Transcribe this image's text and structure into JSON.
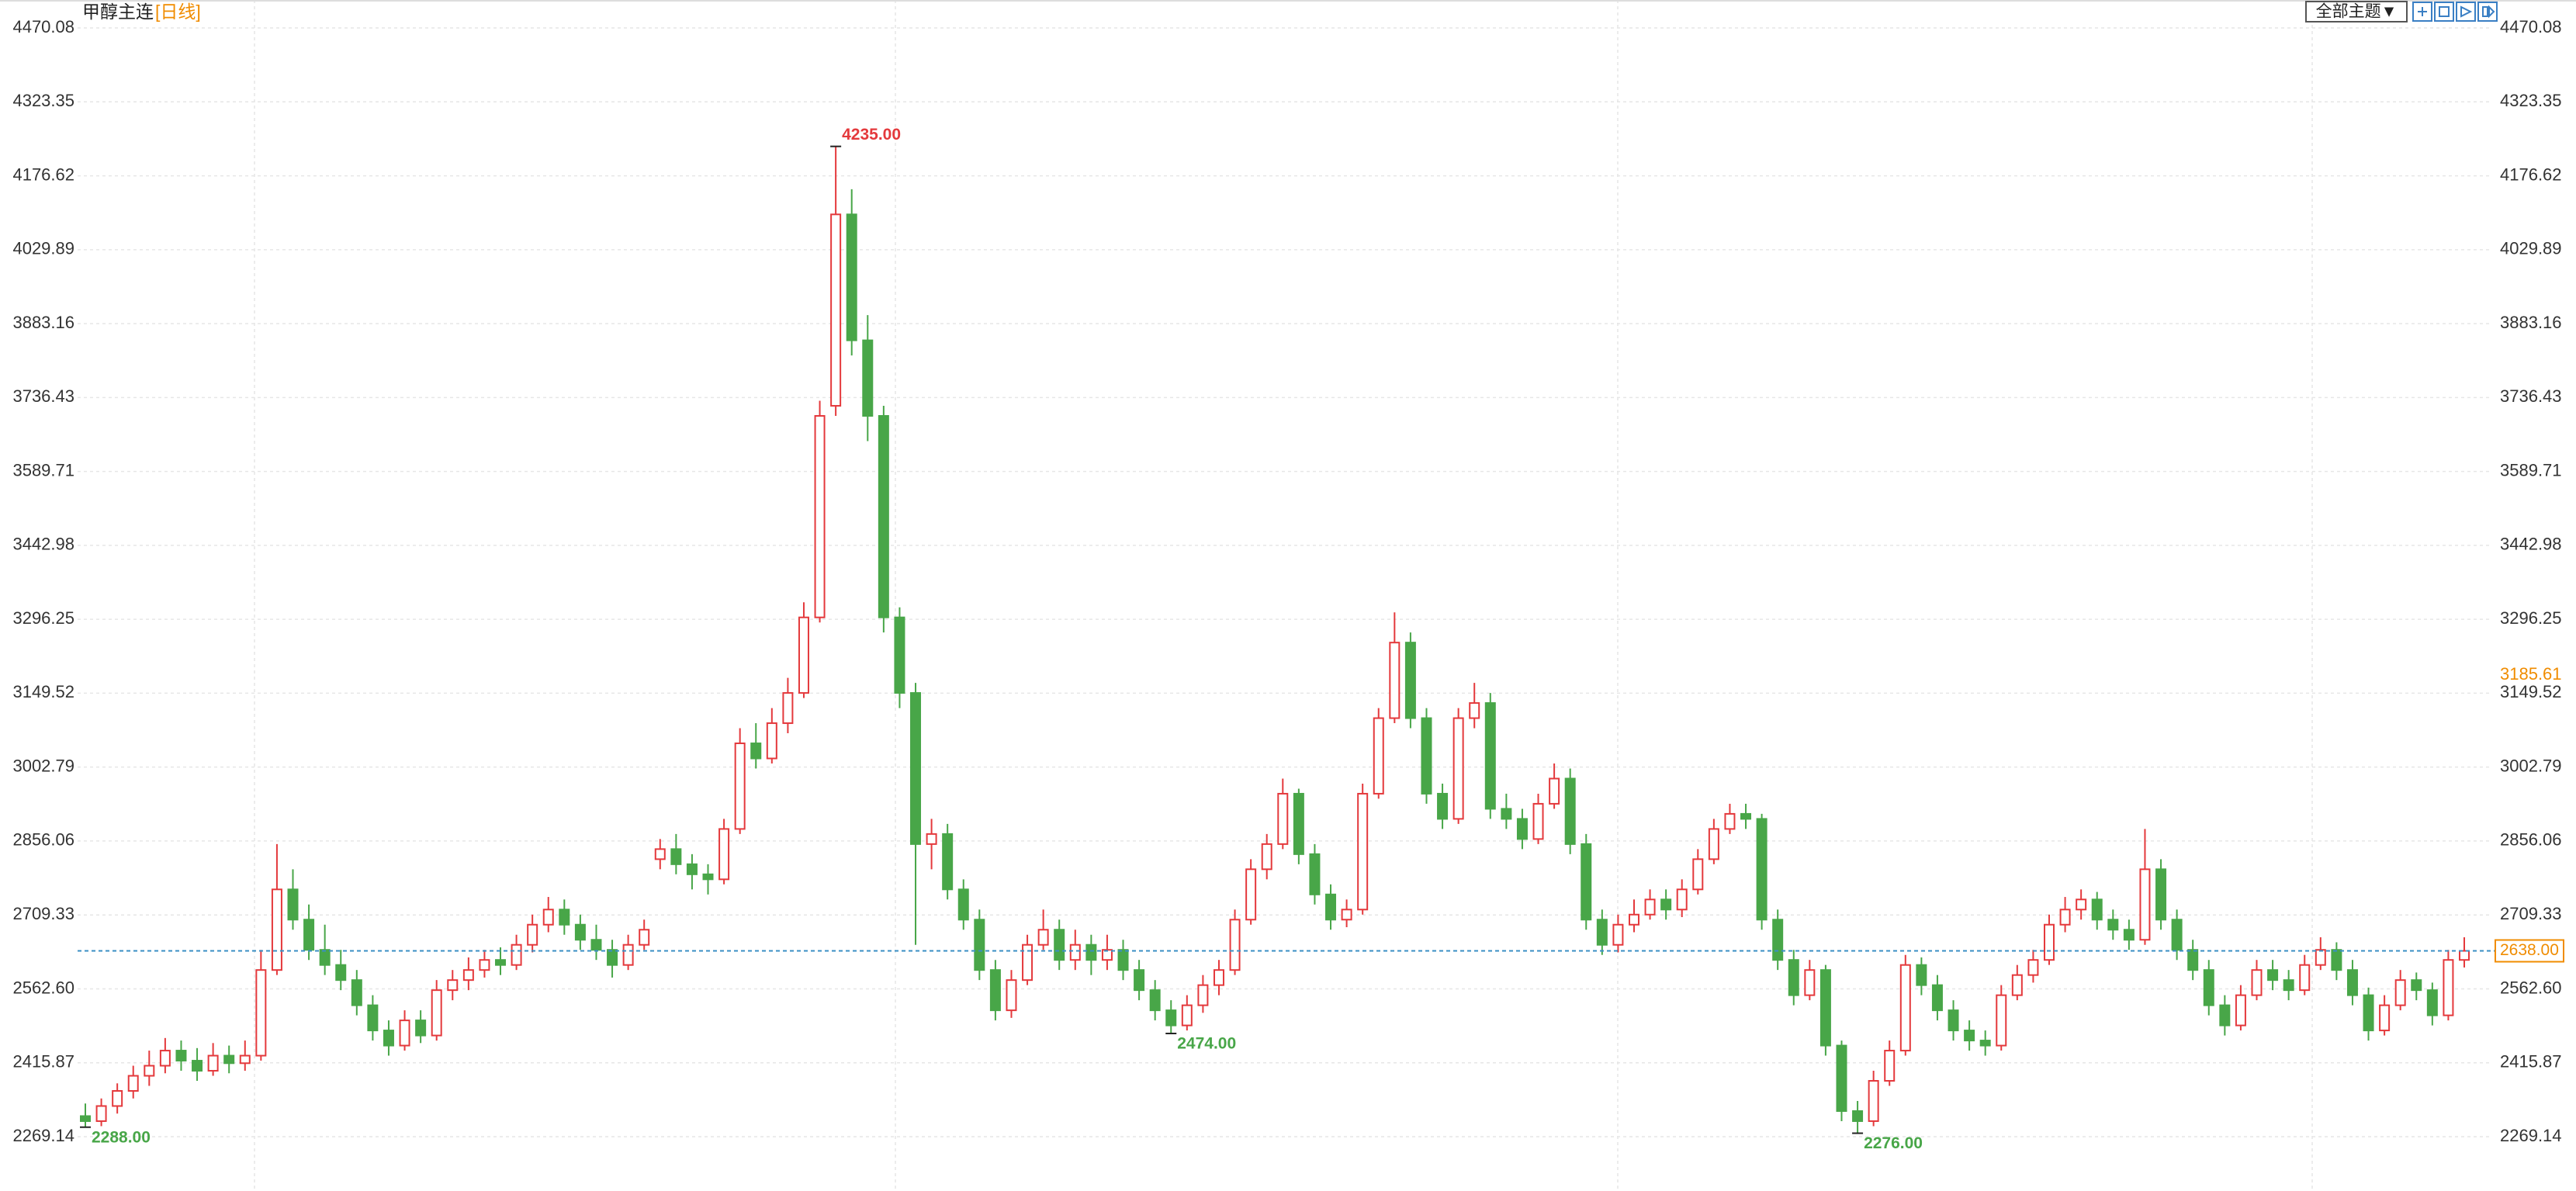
{
  "chart_data": {
    "type": "candlestick",
    "title": "甲醇主连",
    "period": "[日线]",
    "toolbar": {
      "theme_button": "全部主题▼"
    },
    "up_color": "#e4393c",
    "down_color": "#48a648",
    "ylim": [
      2161.3,
      4525.6
    ],
    "yticks": [
      2269.14,
      2415.87,
      {
        "value": 2562.6,
        "label": "2562.60"
      },
      2709.33,
      2856.06,
      3002.79,
      3149.52,
      3296.25,
      3442.98,
      3589.71,
      3736.43,
      3883.16,
      4029.89,
      4176.62,
      4323.35,
      4470.08
    ],
    "grid": true,
    "last_price": {
      "value": 2638,
      "label": "2638.00"
    },
    "cursor_price": 3185.61,
    "extremes": [
      {
        "value": 4235,
        "label": "4235.00"
      },
      {
        "value": 2474,
        "label": "2474.00"
      },
      {
        "value": 2288,
        "label": "2288.00"
      },
      {
        "value": 2276,
        "label": "2276.00"
      }
    ],
    "candles": [
      [
        2310,
        2335,
        2288,
        2300
      ],
      [
        2300,
        2345,
        2290,
        2330
      ],
      [
        2330,
        2375,
        2315,
        2360
      ],
      [
        2360,
        2410,
        2345,
        2390
      ],
      [
        2390,
        2440,
        2370,
        2410
      ],
      [
        2410,
        2465,
        2395,
        2440
      ],
      [
        2440,
        2460,
        2400,
        2420
      ],
      [
        2420,
        2445,
        2380,
        2400
      ],
      [
        2400,
        2455,
        2390,
        2430
      ],
      [
        2430,
        2450,
        2395,
        2415
      ],
      [
        2415,
        2460,
        2400,
        2430
      ],
      [
        2430,
        2640,
        2420,
        2600
      ],
      [
        2600,
        2850,
        2590,
        2760
      ],
      [
        2760,
        2800,
        2680,
        2700
      ],
      [
        2700,
        2730,
        2620,
        2640
      ],
      [
        2640,
        2690,
        2590,
        2610
      ],
      [
        2610,
        2640,
        2560,
        2580
      ],
      [
        2580,
        2600,
        2510,
        2530
      ],
      [
        2530,
        2550,
        2460,
        2480
      ],
      [
        2480,
        2500,
        2430,
        2450
      ],
      [
        2450,
        2520,
        2440,
        2500
      ],
      [
        2500,
        2520,
        2455,
        2470
      ],
      [
        2470,
        2580,
        2460,
        2560
      ],
      [
        2560,
        2600,
        2540,
        2580
      ],
      [
        2580,
        2625,
        2560,
        2600
      ],
      [
        2600,
        2640,
        2585,
        2620
      ],
      [
        2620,
        2645,
        2590,
        2610
      ],
      [
        2610,
        2670,
        2600,
        2650
      ],
      [
        2650,
        2710,
        2635,
        2690
      ],
      [
        2690,
        2745,
        2675,
        2720
      ],
      [
        2720,
        2740,
        2670,
        2690
      ],
      [
        2690,
        2710,
        2640,
        2660
      ],
      [
        2660,
        2690,
        2620,
        2640
      ],
      [
        2640,
        2660,
        2585,
        2610
      ],
      [
        2610,
        2670,
        2600,
        2650
      ],
      [
        2650,
        2700,
        2640,
        2680
      ],
      [
        2820,
        2860,
        2800,
        2840
      ],
      [
        2840,
        2870,
        2790,
        2810
      ],
      [
        2810,
        2830,
        2760,
        2790
      ],
      [
        2790,
        2810,
        2750,
        2780
      ],
      [
        2780,
        2900,
        2770,
        2880
      ],
      [
        2880,
        3080,
        2870,
        3050
      ],
      [
        3050,
        3090,
        3000,
        3020
      ],
      [
        3020,
        3120,
        3010,
        3090
      ],
      [
        3090,
        3180,
        3070,
        3150
      ],
      [
        3150,
        3330,
        3140,
        3300
      ],
      [
        3300,
        3730,
        3290,
        3700
      ],
      [
        3720,
        4235,
        3700,
        4100
      ],
      [
        4100,
        4150,
        3820,
        3850
      ],
      [
        3850,
        3900,
        3650,
        3700
      ],
      [
        3700,
        3720,
        3270,
        3300
      ],
      [
        3300,
        3320,
        3120,
        3150
      ],
      [
        3150,
        3170,
        2650,
        2850
      ],
      [
        2850,
        2900,
        2800,
        2870
      ],
      [
        2870,
        2890,
        2740,
        2760
      ],
      [
        2760,
        2780,
        2680,
        2700
      ],
      [
        2700,
        2720,
        2580,
        2600
      ],
      [
        2600,
        2620,
        2500,
        2520
      ],
      [
        2520,
        2600,
        2505,
        2580
      ],
      [
        2580,
        2670,
        2570,
        2650
      ],
      [
        2650,
        2720,
        2640,
        2680
      ],
      [
        2680,
        2700,
        2600,
        2620
      ],
      [
        2620,
        2680,
        2600,
        2650
      ],
      [
        2650,
        2670,
        2590,
        2620
      ],
      [
        2620,
        2670,
        2600,
        2640
      ],
      [
        2640,
        2660,
        2580,
        2600
      ],
      [
        2600,
        2620,
        2540,
        2560
      ],
      [
        2560,
        2580,
        2500,
        2520
      ],
      [
        2520,
        2540,
        2474,
        2490
      ],
      [
        2490,
        2550,
        2480,
        2530
      ],
      [
        2530,
        2590,
        2515,
        2570
      ],
      [
        2570,
        2620,
        2550,
        2600
      ],
      [
        2600,
        2720,
        2590,
        2700
      ],
      [
        2700,
        2820,
        2690,
        2800
      ],
      [
        2800,
        2870,
        2780,
        2850
      ],
      [
        2850,
        2980,
        2840,
        2950
      ],
      [
        2950,
        2960,
        2810,
        2830
      ],
      [
        2830,
        2850,
        2730,
        2750
      ],
      [
        2750,
        2770,
        2680,
        2700
      ],
      [
        2700,
        2740,
        2685,
        2720
      ],
      [
        2720,
        2970,
        2710,
        2950
      ],
      [
        2950,
        3120,
        2940,
        3100
      ],
      [
        3100,
        3310,
        3090,
        3250
      ],
      [
        3250,
        3270,
        3080,
        3100
      ],
      [
        3100,
        3120,
        2930,
        2950
      ],
      [
        2950,
        2970,
        2880,
        2900
      ],
      [
        2900,
        3120,
        2890,
        3100
      ],
      [
        3100,
        3170,
        3080,
        3130
      ],
      [
        3130,
        3150,
        2900,
        2920
      ],
      [
        2920,
        2950,
        2880,
        2900
      ],
      [
        2900,
        2920,
        2840,
        2860
      ],
      [
        2860,
        2950,
        2850,
        2930
      ],
      [
        2930,
        3010,
        2920,
        2980
      ],
      [
        2980,
        3000,
        2830,
        2850
      ],
      [
        2850,
        2870,
        2680,
        2700
      ],
      [
        2700,
        2720,
        2630,
        2650
      ],
      [
        2650,
        2710,
        2635,
        2690
      ],
      [
        2690,
        2740,
        2675,
        2710
      ],
      [
        2710,
        2760,
        2700,
        2740
      ],
      [
        2740,
        2760,
        2700,
        2720
      ],
      [
        2720,
        2780,
        2705,
        2760
      ],
      [
        2760,
        2840,
        2750,
        2820
      ],
      [
        2820,
        2900,
        2810,
        2880
      ],
      [
        2880,
        2930,
        2870,
        2910
      ],
      [
        2910,
        2930,
        2880,
        2900
      ],
      [
        2900,
        2910,
        2680,
        2700
      ],
      [
        2700,
        2720,
        2600,
        2620
      ],
      [
        2620,
        2640,
        2530,
        2550
      ],
      [
        2550,
        2620,
        2540,
        2600
      ],
      [
        2600,
        2610,
        2430,
        2450
      ],
      [
        2450,
        2460,
        2300,
        2320
      ],
      [
        2320,
        2340,
        2276,
        2300
      ],
      [
        2300,
        2400,
        2290,
        2380
      ],
      [
        2380,
        2460,
        2370,
        2440
      ],
      [
        2440,
        2630,
        2430,
        2610
      ],
      [
        2610,
        2625,
        2550,
        2570
      ],
      [
        2570,
        2590,
        2500,
        2520
      ],
      [
        2520,
        2540,
        2460,
        2480
      ],
      [
        2480,
        2500,
        2440,
        2460
      ],
      [
        2460,
        2480,
        2430,
        2450
      ],
      [
        2450,
        2570,
        2440,
        2550
      ],
      [
        2550,
        2610,
        2540,
        2590
      ],
      [
        2590,
        2640,
        2575,
        2620
      ],
      [
        2620,
        2710,
        2610,
        2690
      ],
      [
        2690,
        2745,
        2675,
        2720
      ],
      [
        2720,
        2760,
        2700,
        2740
      ],
      [
        2740,
        2755,
        2680,
        2700
      ],
      [
        2700,
        2720,
        2660,
        2680
      ],
      [
        2680,
        2700,
        2640,
        2660
      ],
      [
        2660,
        2880,
        2650,
        2800
      ],
      [
        2800,
        2820,
        2680,
        2700
      ],
      [
        2700,
        2720,
        2620,
        2640
      ],
      [
        2640,
        2660,
        2580,
        2600
      ],
      [
        2600,
        2620,
        2510,
        2530
      ],
      [
        2530,
        2550,
        2470,
        2490
      ],
      [
        2490,
        2570,
        2480,
        2550
      ],
      [
        2550,
        2620,
        2540,
        2600
      ],
      [
        2600,
        2620,
        2560,
        2580
      ],
      [
        2580,
        2600,
        2540,
        2560
      ],
      [
        2560,
        2630,
        2550,
        2610
      ],
      [
        2610,
        2665,
        2600,
        2640
      ],
      [
        2640,
        2655,
        2580,
        2600
      ],
      [
        2600,
        2620,
        2530,
        2550
      ],
      [
        2550,
        2565,
        2460,
        2480
      ],
      [
        2480,
        2550,
        2470,
        2530
      ],
      [
        2530,
        2600,
        2520,
        2580
      ],
      [
        2580,
        2595,
        2540,
        2560
      ],
      [
        2560,
        2575,
        2490,
        2510
      ],
      [
        2510,
        2640,
        2500,
        2620
      ],
      [
        2620,
        2665,
        2605,
        2638
      ]
    ]
  }
}
